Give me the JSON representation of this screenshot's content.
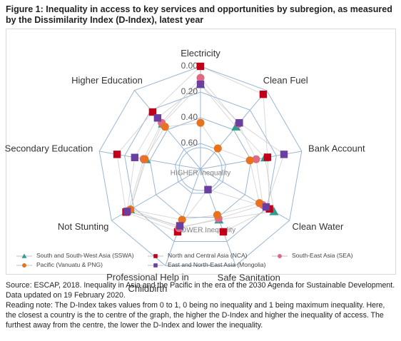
{
  "chart_data": {
    "type": "radar",
    "title": "Figure 1: Inequality in access to key services and opportunities by subregion, as measured by the Dissimilarity Index (D-Index), latest year",
    "categories": [
      "Electricity",
      "Clean Fuel",
      "Bank Account",
      "Clean Water",
      "Safe Sanitation",
      "Professional Help in Childbirth",
      "Not Stunting",
      "Secondary Education",
      "Higher Education"
    ],
    "ylim": [
      0.8,
      0
    ],
    "yticks": [
      {
        "value": 0,
        "label": "0.00"
      },
      {
        "value": 0.2,
        "label": "0.20"
      },
      {
        "value": 0.4,
        "label": "0.40"
      },
      {
        "value": 0.6,
        "label": "0.60"
      }
    ],
    "grid": true,
    "center_label": "HIGHER Inequality",
    "inner_label": "LOWER Inequality",
    "series": [
      {
        "name": "South and South-West Asia (SSWA)",
        "color": "#2e9e8e",
        "marker": "triangle",
        "values": [
          0.14,
          0.37,
          0.29,
          0.14,
          0.38,
          0.32,
          0.17,
          0.37,
          0.34
        ]
      },
      {
        "name": "North and Central Asia (NCA)",
        "color": "#c00018",
        "marker": "square",
        "values": [
          0.0,
          0.04,
          0.27,
          0.18,
          0.28,
          0.28,
          0.13,
          0.14,
          0.22
        ]
      },
      {
        "name": "South-East Asia (SEA)",
        "color": "#e06a86",
        "marker": "circle",
        "values": [
          0.09,
          0.34,
          0.36,
          0.24,
          0.39,
          0.31,
          0.15,
          0.35,
          0.33
        ]
      },
      {
        "name": "Pacific (Vanuatu & PNG)",
        "color": "#e8731e",
        "marker": "circle",
        "values": [
          0.44,
          0.59,
          0.41,
          0.27,
          0.42,
          0.38,
          0.17,
          0.36,
          0.37
        ]
      },
      {
        "name": "East and North-East Asia (Mongolia)",
        "color": "#6b3fa0",
        "marker": "square",
        "values": [
          0.14,
          0.33,
          0.14,
          0.21,
          0.63,
          0.33,
          0.14,
          0.28,
          0.28
        ]
      }
    ],
    "source": "Source: ESCAP, 2018. Inequality in Asia and the Pacific in the era of the 2030 Agenda for Sustainable Development. Data updated on 19 February 2020.",
    "reading_note": "Reading note: The D-Index takes values from 0 to 1, 0 being no inequality and 1 being maximum inequality. Here, the closest a country is the to centre of the graph, the higher the D-Index and higher the inequality of access. The furthest away from the centre, the lower the D-Index and lower the inequality."
  }
}
